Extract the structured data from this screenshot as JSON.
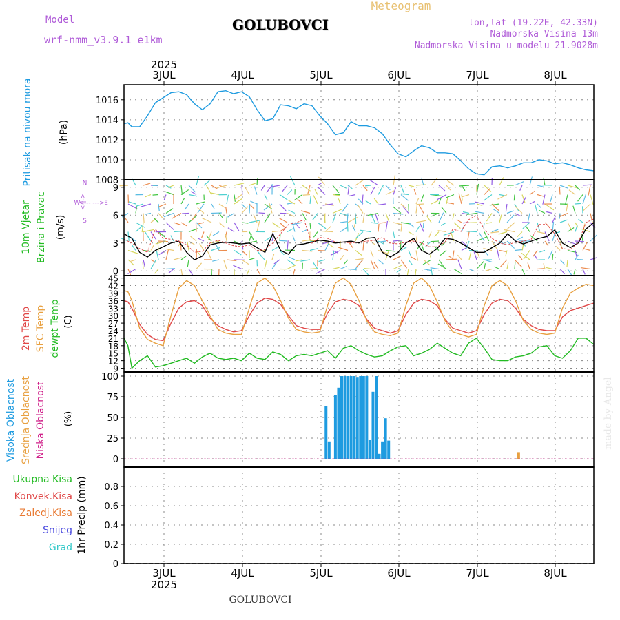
{
  "header": {
    "model_label": "Model",
    "model_name": "wrf-nmm_v3.9.1 e1km",
    "title": "GOLUBOVCI",
    "chart_type_label": "Meteogram",
    "coords": "lon,lat (19.22E, 42.33N)",
    "elevation": "Nadmorska Visina 13m",
    "model_elevation": "Nadmorska Visina u modelu 21.9028m"
  },
  "footer": {
    "title": "GOLUBOVCI",
    "credit": "made by Angel"
  },
  "colors": {
    "pressure": "#1e9be0",
    "temp2m": "#e04848",
    "sfc_temp": "#e8a040",
    "dewpoint": "#22bb22",
    "cloud_high": "#1e9be0",
    "cloud_mid": "#e8a040",
    "cloud_low": "#d0208a",
    "wind_speed": "#000000",
    "grid": "#888888"
  },
  "chart_data": [
    {
      "type": "line",
      "panel": "pressure",
      "top_dates": {
        "year": "2025",
        "days": [
          "3JUL",
          "4JUL",
          "5JUL",
          "6JUL",
          "7JUL",
          "8JUL"
        ]
      },
      "ylabel": [
        "Pritisak na nivou mora",
        "(hPa)"
      ],
      "ylim": [
        1008,
        1017.5
      ],
      "yticks": [
        1008,
        1010,
        1012,
        1014,
        1016
      ],
      "xlim": [
        -0.5,
        5.5
      ],
      "series": [
        {
          "x": [
            -0.5,
            -0.45,
            -0.4,
            -0.3,
            -0.2,
            -0.1,
            0,
            0.1,
            0.2,
            0.3,
            0.4,
            0.5,
            0.6,
            0.7,
            0.8,
            0.9,
            1.0,
            1.1,
            1.2,
            1.3,
            1.4,
            1.5,
            1.6,
            1.7,
            1.8,
            1.9,
            2.0,
            2.1,
            2.2,
            2.3,
            2.4,
            2.5,
            2.6,
            2.7,
            2.8,
            2.9,
            3.0,
            3.1,
            3.2,
            3.3,
            3.4,
            3.5,
            3.6,
            3.7,
            3.8,
            3.9,
            4.0,
            4.1,
            4.2,
            4.3,
            4.4,
            4.5,
            4.6,
            4.7,
            4.8,
            4.9,
            5.0,
            5.1,
            5.2,
            5.3,
            5.4,
            5.5
          ],
          "y": [
            1013.6,
            1013.7,
            1013.3,
            1013.3,
            1014.4,
            1015.7,
            1016.2,
            1016.7,
            1016.8,
            1016.5,
            1015.6,
            1015.0,
            1015.6,
            1016.8,
            1016.9,
            1016.6,
            1016.8,
            1016.3,
            1015.0,
            1013.9,
            1014.1,
            1015.5,
            1015.4,
            1015.1,
            1015.6,
            1015.4,
            1014.4,
            1013.6,
            1012.5,
            1012.7,
            1013.8,
            1013.4,
            1013.4,
            1013.2,
            1012.6,
            1011.5,
            1010.6,
            1010.3,
            1010.9,
            1011.4,
            1011.2,
            1010.7,
            1010.7,
            1010.6,
            1009.9,
            1009.1,
            1008.6,
            1008.5,
            1009.3,
            1009.4,
            1009.2,
            1009.4,
            1009.7,
            1009.7,
            1010.0,
            1009.9,
            1009.6,
            1009.7,
            1009.5,
            1009.2,
            1009.0,
            1008.9
          ]
        }
      ]
    },
    {
      "type": "line",
      "panel": "wind",
      "ylabel": [
        "10m Vjetar",
        "Brzina i Pravac",
        "(m/s)"
      ],
      "direction_legend": {
        "north": "N",
        "south": "S",
        "west": "W",
        "east": "E",
        "arrows": "<--- --->",
        "axis": "<-|->"
      },
      "ylim": [
        -0.5,
        9.8
      ],
      "yticks": [
        0,
        3,
        6,
        9
      ],
      "xlim": [
        -0.5,
        5.5
      ],
      "series": [
        {
          "name": "wind_speed",
          "x": [
            -0.5,
            -0.4,
            -0.3,
            -0.2,
            -0.1,
            0,
            0.1,
            0.2,
            0.3,
            0.4,
            0.5,
            0.6,
            0.7,
            0.8,
            0.9,
            1.0,
            1.1,
            1.2,
            1.3,
            1.4,
            1.5,
            1.6,
            1.7,
            1.8,
            1.9,
            2.0,
            2.1,
            2.2,
            2.3,
            2.4,
            2.5,
            2.6,
            2.7,
            2.8,
            2.9,
            3.0,
            3.1,
            3.2,
            3.3,
            3.4,
            3.5,
            3.6,
            3.7,
            3.8,
            3.9,
            4.0,
            4.1,
            4.2,
            4.3,
            4.4,
            4.5,
            4.6,
            4.7,
            4.8,
            4.9,
            5.0,
            5.1,
            5.2,
            5.3,
            5.4,
            5.5
          ],
          "y": [
            4.0,
            3.5,
            2.0,
            1.5,
            2.2,
            2.6,
            3.0,
            3.2,
            2.0,
            1.2,
            1.6,
            2.8,
            3.0,
            3.1,
            3.0,
            2.9,
            3.0,
            2.5,
            2.0,
            4.0,
            2.2,
            1.8,
            2.8,
            2.9,
            3.1,
            3.3,
            3.2,
            3.0,
            3.1,
            3.2,
            3.0,
            3.5,
            3.6,
            2.0,
            1.5,
            2.0,
            3.0,
            3.5,
            2.2,
            1.8,
            2.4,
            3.5,
            3.4,
            3.0,
            2.5,
            2.0,
            2.0,
            2.5,
            3.0,
            4.0,
            3.2,
            2.9,
            3.2,
            3.5,
            3.7,
            4.4,
            3.0,
            2.5,
            3.0,
            4.5,
            5.2
          ]
        },
        {
          "name": "gust",
          "x": [
            -0.5,
            -0.4,
            -0.3,
            -0.2,
            -0.1,
            0,
            0.1,
            0.2,
            0.3,
            0.4,
            0.5,
            0.6,
            0.7,
            0.8,
            0.9,
            1.0,
            1.1,
            1.2,
            1.3,
            1.4,
            1.5,
            1.6,
            1.7,
            1.8,
            1.9,
            2.0,
            2.1,
            2.2,
            2.3,
            2.4,
            2.5,
            2.6,
            2.7,
            2.8,
            2.9,
            3.0,
            3.1,
            3.2,
            3.3,
            3.4,
            3.5,
            3.6,
            3.7,
            3.8,
            3.9,
            4.0,
            4.1,
            4.2,
            4.3,
            4.4,
            4.5,
            4.6,
            4.7,
            4.8,
            4.9,
            5.0,
            5.1,
            5.2,
            5.3,
            5.4,
            5.5
          ],
          "y": [
            3.4,
            3.0,
            2.4,
            2.0,
            4.5,
            3.5,
            3.4,
            3.2,
            2.8,
            2.0,
            2.1,
            3.0,
            3.3,
            3.0,
            2.7,
            2.6,
            2.8,
            2.2,
            2.3,
            3.0,
            4.0,
            5.0,
            5.2,
            5.5,
            3.0,
            3.6,
            3.5,
            3.1,
            3.1,
            3.0,
            3.1,
            3.2,
            3.3,
            3.6,
            3.0,
            2.9,
            3.1,
            3.2,
            3.0,
            2.6,
            2.6,
            3.1,
            4.5,
            4.2,
            5.5,
            6.0,
            4.5,
            3.5,
            3.0,
            2.8,
            3.1,
            3.2,
            3.4,
            5.0,
            5.0,
            4.0,
            2.4,
            2.3,
            3.0,
            5.2,
            5.6
          ]
        }
      ]
    },
    {
      "type": "line",
      "panel": "temperature",
      "ylabel": [
        "2m Temp",
        "SFC Temp",
        "dewpt Temp",
        "(C)"
      ],
      "ylim": [
        7.5,
        46
      ],
      "yticks": [
        9,
        12,
        15,
        18,
        21,
        24,
        27,
        30,
        33,
        36,
        39,
        42,
        45
      ],
      "xlim": [
        -0.5,
        5.5
      ],
      "series": [
        {
          "name": "2m Temp",
          "x": [
            -0.5,
            -0.45,
            -0.4,
            -0.3,
            -0.2,
            -0.1,
            0,
            0.1,
            0.2,
            0.3,
            0.4,
            0.5,
            0.6,
            0.7,
            0.8,
            0.9,
            1.0,
            1.1,
            1.2,
            1.3,
            1.4,
            1.5,
            1.6,
            1.7,
            1.8,
            1.9,
            2.0,
            2.1,
            2.2,
            2.3,
            2.4,
            2.5,
            2.6,
            2.7,
            2.8,
            2.9,
            3.0,
            3.1,
            3.2,
            3.3,
            3.4,
            3.5,
            3.6,
            3.7,
            3.8,
            3.9,
            4.0,
            4.1,
            4.2,
            4.3,
            4.4,
            4.5,
            4.6,
            4.7,
            4.8,
            4.9,
            5.0,
            5.1,
            5.2,
            5.3,
            5.4,
            5.5
          ],
          "y": [
            36.0,
            35.5,
            33.0,
            26.5,
            22.5,
            20.5,
            20.0,
            27.0,
            33.0,
            35.5,
            36.0,
            34.0,
            29.0,
            26.0,
            24.5,
            23.5,
            24.0,
            30.0,
            35.0,
            37.0,
            36.5,
            34.5,
            30.0,
            26.0,
            25.0,
            24.5,
            24.5,
            31.0,
            35.5,
            36.5,
            36.0,
            34.0,
            28.5,
            25.0,
            24.0,
            23.0,
            24.0,
            30.5,
            35.0,
            36.5,
            36.0,
            34.0,
            28.5,
            25.0,
            24.0,
            23.0,
            24.0,
            30.5,
            35.0,
            36.5,
            36.0,
            33.0,
            28.5,
            26.0,
            24.5,
            24.0,
            24.0,
            29.5,
            32.0,
            33.0,
            34.0,
            35.0
          ]
        },
        {
          "name": "SFC Temp",
          "x": [
            -0.5,
            -0.45,
            -0.4,
            -0.3,
            -0.2,
            -0.1,
            0,
            0.1,
            0.2,
            0.3,
            0.4,
            0.5,
            0.6,
            0.7,
            0.8,
            0.9,
            1.0,
            1.1,
            1.2,
            1.3,
            1.4,
            1.5,
            1.6,
            1.7,
            1.8,
            1.9,
            2.0,
            2.1,
            2.2,
            2.3,
            2.4,
            2.5,
            2.6,
            2.7,
            2.8,
            2.9,
            3.0,
            3.1,
            3.2,
            3.3,
            3.4,
            3.5,
            3.6,
            3.7,
            3.8,
            3.9,
            4.0,
            4.1,
            4.2,
            4.3,
            4.4,
            4.5,
            4.6,
            4.7,
            4.8,
            4.9,
            5.0,
            5.1,
            5.2,
            5.3,
            5.4,
            5.5
          ],
          "y": [
            40.0,
            39.5,
            36.0,
            25.0,
            20.5,
            19.0,
            18.0,
            30.0,
            41.0,
            44.0,
            42.0,
            36.0,
            30.0,
            24.5,
            23.0,
            22.5,
            22.5,
            33.0,
            43.0,
            45.0,
            42.0,
            36.0,
            29.0,
            24.5,
            23.5,
            23.0,
            23.5,
            34.0,
            43.0,
            45.0,
            42.5,
            36.0,
            28.0,
            23.5,
            22.5,
            22.0,
            23.0,
            34.0,
            43.0,
            45.0,
            42.0,
            35.5,
            28.0,
            23.5,
            22.5,
            21.5,
            22.5,
            34.0,
            42.0,
            44.0,
            42.0,
            36.0,
            28.0,
            24.5,
            23.0,
            22.5,
            23.0,
            33.0,
            39.0,
            41.0,
            42.5,
            42.0
          ]
        },
        {
          "name": "dewpt Temp",
          "x": [
            -0.5,
            -0.45,
            -0.4,
            -0.3,
            -0.2,
            -0.1,
            0,
            0.1,
            0.2,
            0.3,
            0.4,
            0.5,
            0.6,
            0.7,
            0.8,
            0.9,
            1.0,
            1.1,
            1.2,
            1.3,
            1.4,
            1.5,
            1.6,
            1.7,
            1.8,
            1.9,
            2.0,
            2.1,
            2.2,
            2.3,
            2.4,
            2.5,
            2.6,
            2.7,
            2.8,
            2.9,
            3.0,
            3.1,
            3.2,
            3.3,
            3.4,
            3.5,
            3.6,
            3.7,
            3.8,
            3.9,
            4.0,
            4.1,
            4.2,
            4.3,
            4.4,
            4.5,
            4.6,
            4.7,
            4.8,
            4.9,
            5.0,
            5.1,
            5.2,
            5.3,
            5.4,
            5.5
          ],
          "y": [
            21.0,
            18.0,
            9.0,
            12.0,
            14.0,
            9.5,
            10.0,
            11.0,
            12.0,
            13.0,
            11.0,
            13.5,
            15.0,
            13.0,
            12.5,
            13.0,
            12.0,
            15.0,
            13.0,
            12.5,
            15.5,
            14.5,
            12.0,
            14.0,
            14.5,
            14.0,
            15.0,
            16.0,
            13.0,
            17.0,
            18.0,
            16.0,
            14.5,
            13.5,
            14.0,
            16.0,
            17.5,
            18.0,
            14.0,
            15.0,
            16.5,
            19.0,
            17.0,
            15.0,
            14.0,
            19.0,
            21.0,
            17.0,
            12.5,
            12.0,
            12.0,
            13.5,
            14.0,
            15.0,
            17.5,
            18.0,
            14.0,
            13.0,
            16.0,
            21.0,
            21.0,
            18.5
          ]
        }
      ]
    },
    {
      "type": "bar",
      "panel": "clouds",
      "ylabel": [
        "Visoka Oblacnost",
        "Srednja Oblacnost",
        "Niska Oblacnost",
        "(%)"
      ],
      "ylim": [
        -10,
        105
      ],
      "yticks": [
        0,
        25,
        50,
        75,
        100
      ],
      "xlim": [
        -0.5,
        5.5
      ],
      "series": [
        {
          "name": "Visoka Oblacnost",
          "x": [
            2.08,
            2.12,
            2.2,
            2.24,
            2.28,
            2.32,
            2.36,
            2.4,
            2.44,
            2.48,
            2.52,
            2.56,
            2.6,
            2.64,
            2.68,
            2.72,
            2.76,
            2.8,
            2.84,
            2.88
          ],
          "values": [
            64,
            21,
            77,
            86,
            100,
            100,
            100,
            100,
            100,
            99,
            100,
            100,
            100,
            23,
            81,
            100,
            6,
            21,
            49,
            22
          ]
        },
        {
          "name": "Srednja Oblacnost",
          "x": [
            4.54
          ],
          "values": [
            8
          ]
        },
        {
          "name": "Niska Oblacnost",
          "x": [],
          "values": []
        }
      ]
    },
    {
      "type": "bar",
      "panel": "precip",
      "ylabel": [
        "1hr Precip (mm)"
      ],
      "legend": [
        "Ukupna Kisa",
        "Konvek.Kisa",
        "Zaledj.Kisa",
        "Snijeg",
        "Grad"
      ],
      "legend_colors": [
        "#22bb22",
        "#e04848",
        "#e87830",
        "#5050e0",
        "#30c8c8"
      ],
      "ylim": [
        0,
        1.0
      ],
      "yticks": [
        0,
        0.2,
        0.4,
        0.6,
        0.8
      ],
      "xlim": [
        -0.5,
        5.5
      ],
      "bottom_dates": {
        "year": "2025",
        "days": [
          "3JUL",
          "4JUL",
          "5JUL",
          "6JUL",
          "7JUL",
          "8JUL"
        ]
      },
      "series": []
    }
  ]
}
